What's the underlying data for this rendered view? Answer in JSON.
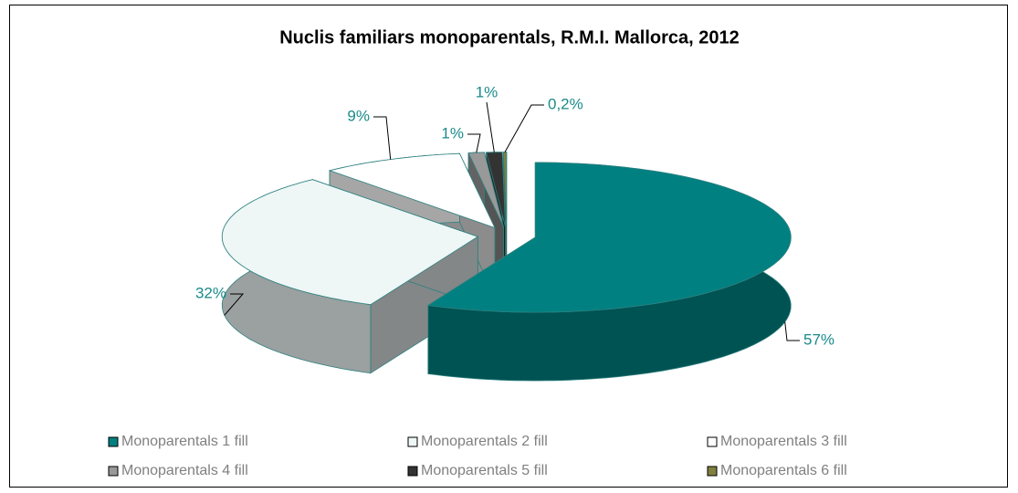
{
  "chart_data": {
    "type": "pie",
    "title": "Nuclis familiars monoparentals, R.M.I. Mallorca, 2012",
    "categories": [
      "Monoparentals 1 fill",
      "Monoparentals 2 fill",
      "Monoparentals 3 fill",
      "Monoparentals 4 fill",
      "Monoparentals 5 fill",
      "Monoparentals 6 fill"
    ],
    "values": [
      57,
      32,
      9,
      1,
      1,
      0.2
    ],
    "value_labels": [
      "57%",
      "32%",
      "9%",
      "1%",
      "1%",
      "0,2%"
    ],
    "colors": [
      "#008080",
      "#eef6f6",
      "#ffffff",
      "#999999",
      "#333333",
      "#808040"
    ],
    "legend": "bottom"
  }
}
